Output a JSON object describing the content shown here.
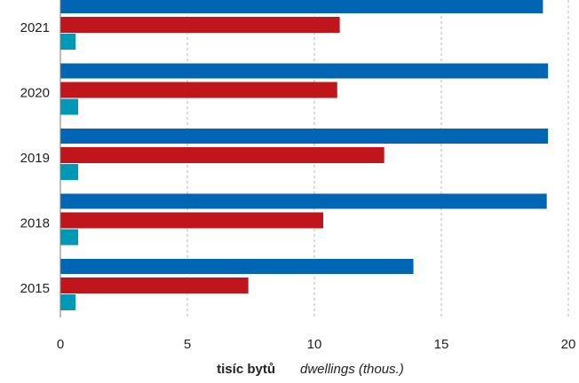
{
  "chart_data": {
    "type": "bar",
    "orientation": "horizontal",
    "categories": [
      "2021",
      "2020",
      "2019",
      "2018",
      "2015"
    ],
    "series": [
      {
        "values": [
          19.0,
          19.2,
          19.2,
          19.15,
          13.9
        ],
        "color": "#0066b3"
      },
      {
        "values": [
          11.0,
          10.9,
          12.75,
          10.35,
          7.4
        ],
        "color": "#c0161b"
      },
      {
        "values": [
          0.6,
          0.7,
          0.7,
          0.7,
          0.6
        ],
        "color": "#0099b5"
      }
    ],
    "xlim": [
      0,
      20
    ],
    "xticks": [
      0,
      5,
      10,
      15,
      20
    ],
    "grid": true,
    "xlabel_bold": "tisíc bytů",
    "xlabel_italic": "dwellings (thous.)"
  }
}
